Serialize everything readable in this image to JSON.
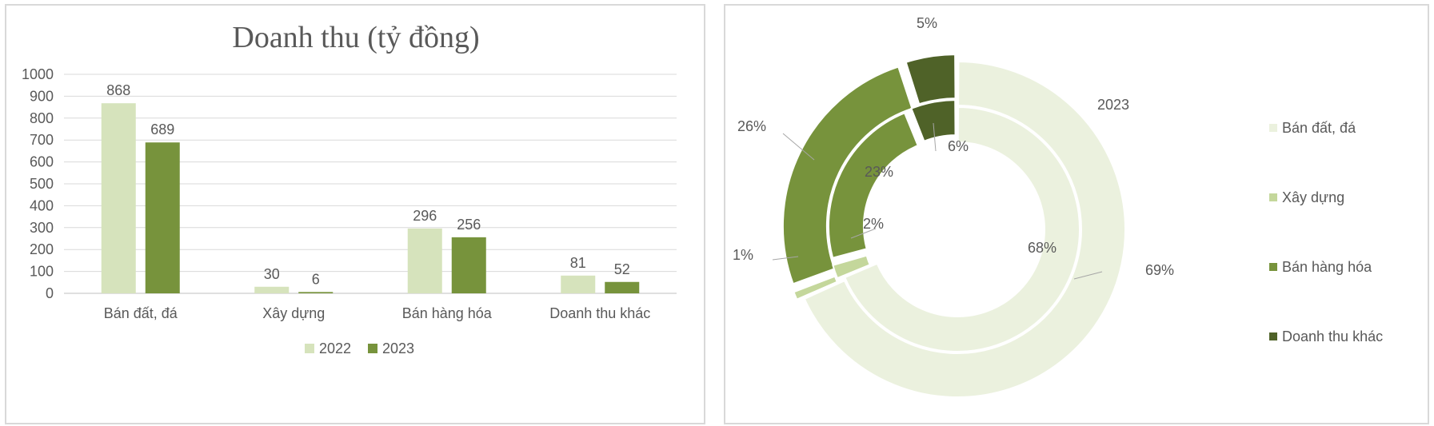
{
  "chart_data": [
    {
      "type": "bar",
      "title": "Doanh thu (tỷ đồng)",
      "categories": [
        "Bán đất, đá",
        "Xây dựng",
        "Bán hàng hóa",
        "Doanh thu khác"
      ],
      "series": [
        {
          "name": "2022",
          "values": [
            868,
            30,
            296,
            81
          ],
          "color": "#d6e3bc"
        },
        {
          "name": "2023",
          "values": [
            689,
            6,
            256,
            52
          ],
          "color": "#77933c"
        }
      ],
      "ylim": [
        0,
        1000
      ],
      "yticks": [
        0,
        100,
        200,
        300,
        400,
        500,
        600,
        700,
        800,
        900,
        1000
      ],
      "grid": true,
      "legend": "bottom"
    },
    {
      "type": "pie",
      "variant": "doughnut",
      "title": "2023",
      "categories": [
        "Bán đất, đá",
        "Xây dựng",
        "Bán hàng hóa",
        "Doanh thu khác"
      ],
      "colors": [
        "#ebf1de",
        "#c4d79b",
        "#77933c",
        "#4f6228"
      ],
      "rings": [
        {
          "ring": "outer",
          "values": [
            69,
            1,
            26,
            5
          ],
          "labels": [
            "69%",
            "1%",
            "26%",
            "5%"
          ]
        },
        {
          "ring": "inner",
          "values": [
            68,
            2,
            23,
            6
          ],
          "labels": [
            "68%",
            "2%",
            "23%",
            "6%"
          ]
        }
      ],
      "legend": "right"
    }
  ]
}
